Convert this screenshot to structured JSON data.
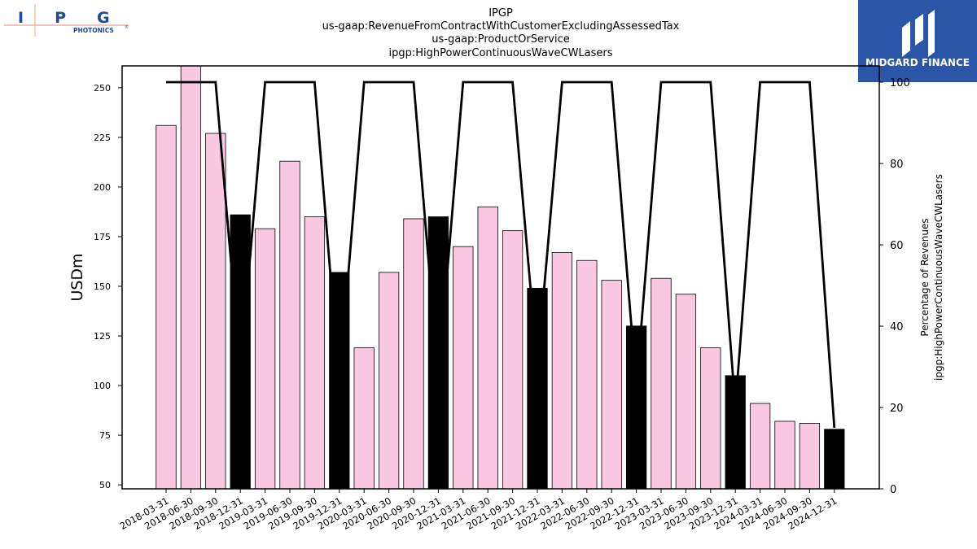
{
  "logo": {
    "letters": "IPG",
    "subtext": "PHOTONICS",
    "mark": "®"
  },
  "badge": {
    "brand": "MIDGARD FINANCE",
    "bg_color": "#2b55a6"
  },
  "chart_data": {
    "type": "bar",
    "title_lines": [
      "IPGP",
      "us-gaap:RevenueFromContractWithCustomerExcludingAssessedTax",
      "us-gaap:ProductOrService",
      "ipgp:HighPowerContinuousWaveCWLasers"
    ],
    "ylabel": "USDm",
    "y2label_lines": [
      "Percentage of Revenues",
      "ipgp:HighPowerContinuousWaveCWLasers"
    ],
    "ylim": [
      48,
      261
    ],
    "y_ticks": [
      50,
      75,
      100,
      125,
      150,
      175,
      200,
      225,
      250
    ],
    "y2lim": [
      0,
      104
    ],
    "y2_ticks": [
      0,
      20,
      40,
      60,
      80,
      100
    ],
    "categories": [
      "2018-03-31",
      "2018-06-30",
      "2018-09-30",
      "2018-12-31",
      "2019-03-31",
      "2019-06-30",
      "2019-09-30",
      "2019-12-31",
      "2020-03-31",
      "2020-06-30",
      "2020-09-30",
      "2020-12-31",
      "2021-03-31",
      "2021-06-30",
      "2021-09-30",
      "2021-12-31",
      "2022-03-31",
      "2022-06-30",
      "2022-09-30",
      "2022-12-31",
      "2023-03-31",
      "2023-06-30",
      "2023-09-30",
      "2023-12-31",
      "2024-03-31",
      "2024-06-30",
      "2024-09-30",
      "2024-12-31"
    ],
    "series": [
      {
        "values": [
          231,
          264,
          227,
          186,
          179,
          213,
          185,
          157,
          119,
          157,
          184,
          185,
          170,
          190,
          178,
          149,
          167,
          163,
          153,
          130,
          154,
          146,
          119,
          105,
          91,
          82,
          81,
          78
        ]
      },
      {
        "values": [
          100,
          100,
          100,
          29,
          100,
          100,
          100,
          26,
          100,
          100,
          100,
          27,
          100,
          100,
          100,
          30,
          100,
          100,
          100,
          25,
          100,
          100,
          100,
          20,
          100,
          100,
          100,
          15
        ]
      }
    ],
    "bar_color_quarter": "#fbc8e2",
    "bar_color_annual": "#000000",
    "line_color": "#000000",
    "grid": false
  }
}
